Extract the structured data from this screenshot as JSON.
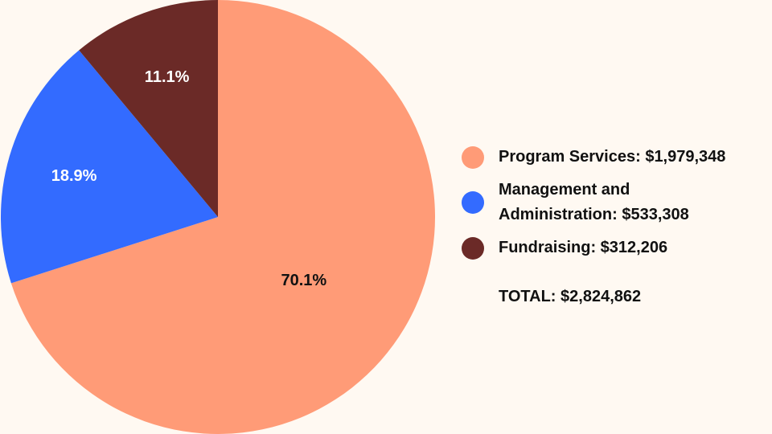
{
  "chart_data": {
    "type": "pie",
    "title": "",
    "start_angle": "12 o'clock",
    "direction": "clockwise",
    "legend_position": "right",
    "slices": [
      {
        "label": "Program Services",
        "value": 1979348,
        "display_value": "$1,979,348",
        "percent_label": "70.1%",
        "percent": 70.1,
        "color": "#FF9B77",
        "label_color": "#111111"
      },
      {
        "label": "Management and Administration",
        "value": 533308,
        "display_value": "$533,308",
        "percent_label": "18.9%",
        "percent": 18.9,
        "color": "#336BFF",
        "label_color": "#FFFFFF"
      },
      {
        "label": "Fundraising",
        "value": 312206,
        "display_value": "$312,206",
        "percent_label": "11.1%",
        "percent": 11.1,
        "color": "#6B2A27",
        "label_color": "#FFFFFF"
      }
    ],
    "legend": [
      {
        "text_line1": "Program Services: $1,979,348"
      },
      {
        "text_line1": "Management and",
        "text_line2": "Administration: $533,308"
      },
      {
        "text_line1": "Fundraising: $312,206"
      }
    ],
    "total_label": "TOTAL: $2,824,862"
  }
}
